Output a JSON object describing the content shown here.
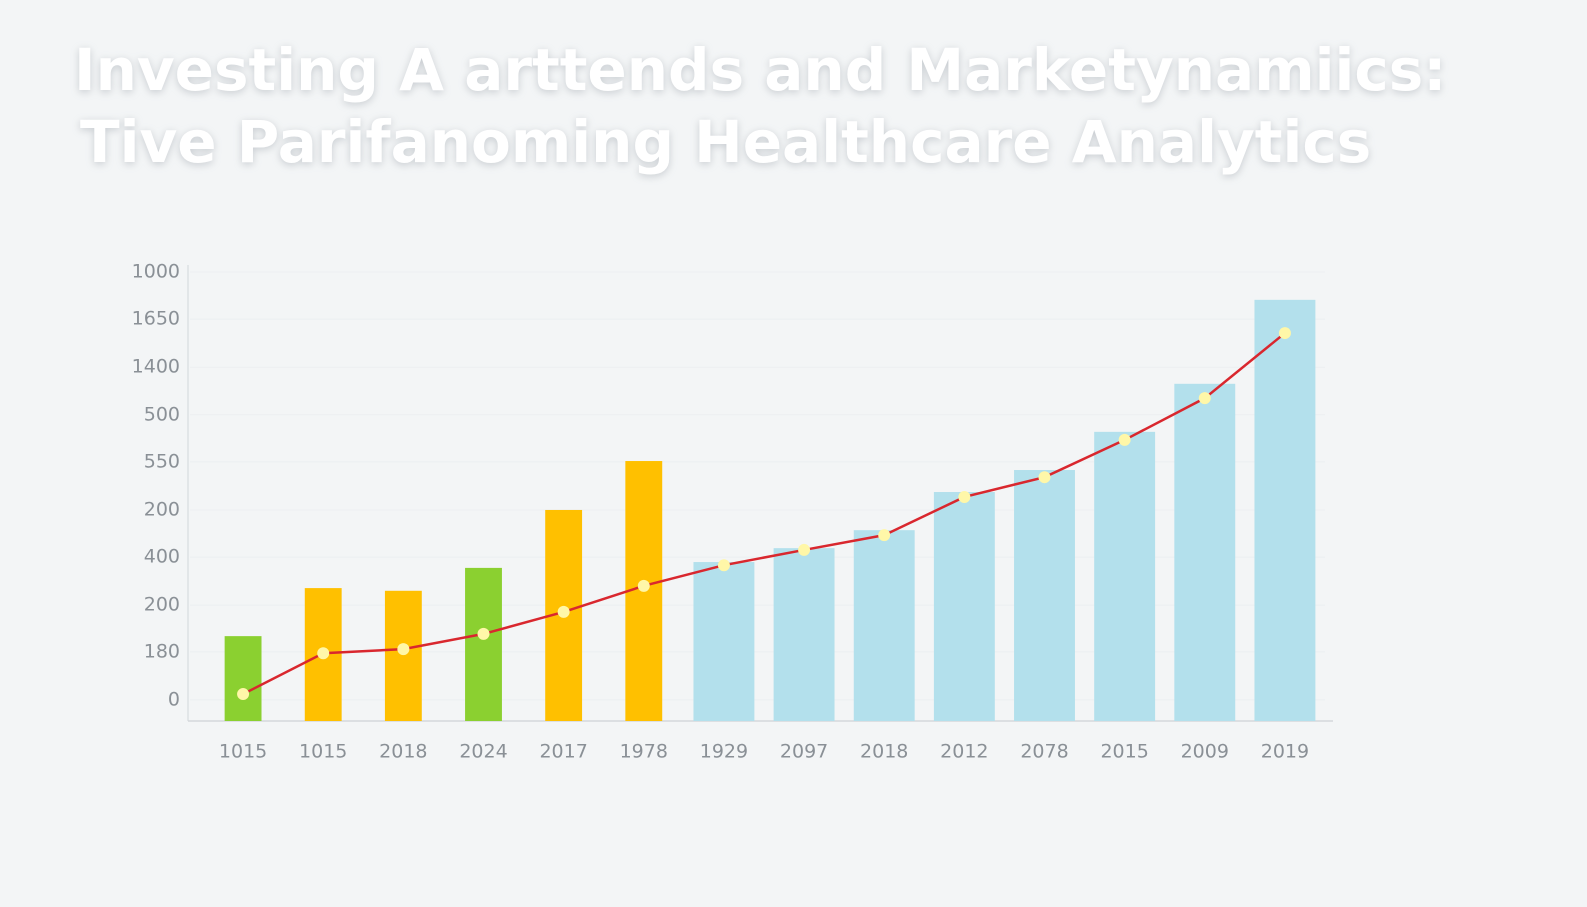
{
  "chart_data": {
    "type": "bar",
    "title": [
      "Investing A arttends and Marketynamiics:",
      "Tive Parifanoming Healthcare Analytics"
    ],
    "categories": [
      "1015",
      "1015",
      "2018",
      "2024",
      "2017",
      "1978",
      "1929",
      "2097",
      "2018",
      "2012",
      "2078",
      "2015",
      "2009",
      "2019"
    ],
    "series": [
      {
        "type": "bar",
        "colors": [
          "#8bd030",
          "#ffc000",
          "#ffc000",
          "#8bd030",
          "#ffc000",
          "#ffc000",
          "#b3e0ec",
          "#b3e0ec",
          "#b3e0ec",
          "#b3e0ec",
          "#b3e0ec",
          "#b3e0ec",
          "#b3e0ec",
          "#b3e0ec"
        ],
        "values": [
          189,
          296,
          290,
          341,
          470,
          579,
          354,
          385,
          425,
          510,
          559,
          644,
          751,
          938
        ]
      },
      {
        "type": "line",
        "color": "#d9272e",
        "marker_color": "#fff7a8",
        "values": [
          60,
          151,
          160,
          194,
          243,
          301,
          347,
          381,
          414,
          499,
          543,
          626,
          719,
          864
        ]
      }
    ],
    "ylim": [
      0,
      1000
    ],
    "yticks": [
      {
        "value": 47,
        "label": "0"
      },
      {
        "value": 154,
        "label": "180"
      },
      {
        "value": 258,
        "label": "200"
      },
      {
        "value": 365,
        "label": "400"
      },
      {
        "value": 470,
        "label": "200"
      },
      {
        "value": 577,
        "label": "550"
      },
      {
        "value": 682,
        "label": "500"
      },
      {
        "value": 788,
        "label": "1400"
      },
      {
        "value": 895,
        "label": "1650"
      },
      1000
    ],
    "grid": true
  }
}
